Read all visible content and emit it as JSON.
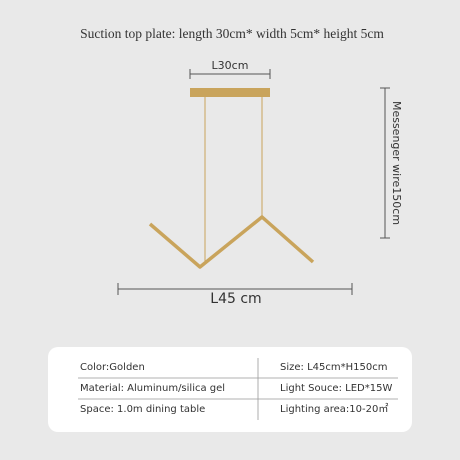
{
  "header": {
    "title": "Suction top plate: length 30cm* width 5cm* height 5cm"
  },
  "dimensions": {
    "plate_length": "L30cm",
    "wire_length": "Messenger wire150cm",
    "lamp_length": "L45 cm"
  },
  "table": {
    "rows": [
      [
        "Color:Golden",
        "Size: L45cm*H150cm"
      ],
      [
        "Material: Aluminum/silica gel",
        "Light Souce: LED*15W"
      ],
      [
        "Space: 1.0m dining table",
        "Lighting area:10-20㎡"
      ]
    ]
  }
}
